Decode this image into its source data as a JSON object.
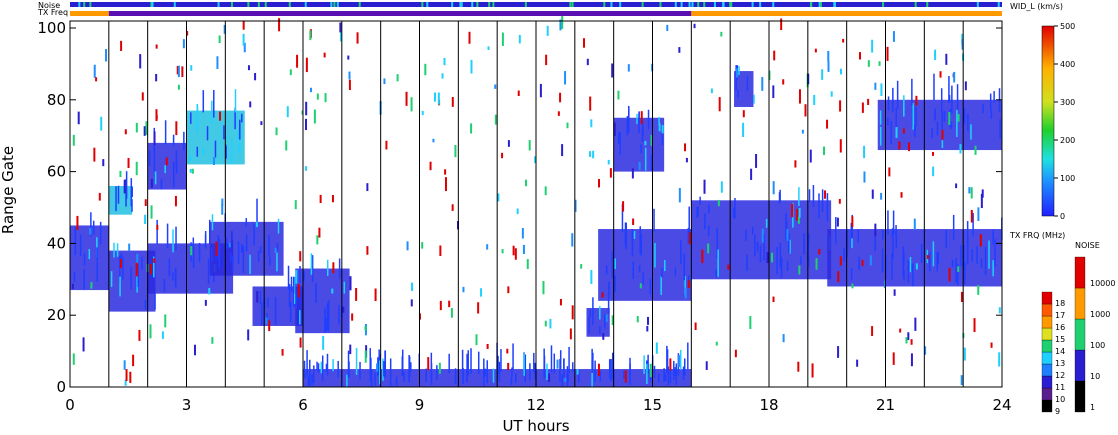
{
  "chart_data": {
    "type": "heatmap",
    "xlabel": "UT hours",
    "ylabel": "Range Gate",
    "xlim": [
      0,
      24
    ],
    "ylim": [
      0,
      100
    ],
    "xticks": [
      0,
      3,
      6,
      9,
      12,
      15,
      18,
      21,
      24
    ],
    "yticks": [
      0,
      20,
      40,
      60,
      80,
      100
    ],
    "grid_hours": [
      1,
      2,
      3,
      4,
      5,
      6,
      7,
      8,
      9,
      10,
      11,
      12,
      13,
      14,
      15,
      16,
      17,
      18,
      19,
      20,
      21,
      22,
      23
    ],
    "status_bars": {
      "noise_label": "Noise",
      "txfreq_label": "TX Freq",
      "txfreq_segments": [
        {
          "start": 0,
          "end": 1,
          "color": "#ff9900"
        },
        {
          "start": 1,
          "end": 16,
          "color": "#5a0fb0"
        },
        {
          "start": 16,
          "end": 24,
          "color": "#ff9900"
        }
      ]
    },
    "colorbars": {
      "width": {
        "title": "WID_L (km/s)",
        "ticks": [
          0,
          100,
          200,
          300,
          400,
          500
        ],
        "range": [
          0,
          500
        ]
      },
      "txfreq": {
        "title": "TX FRQ (MHz)",
        "ticks": [
          9,
          10,
          11,
          12,
          13,
          14,
          15,
          16,
          17,
          18
        ],
        "colors": [
          "#000000",
          "#5a1f8c",
          "#2a1fd0",
          "#1f7fff",
          "#1fd0ff",
          "#1fd070",
          "#dfe01f",
          "#ff9900",
          "#ff5a00",
          "#e00000"
        ]
      },
      "noise": {
        "title": "NOISE",
        "ticks": [
          "1",
          "10",
          "100",
          "1000",
          "10000"
        ],
        "colors": [
          "#000000",
          "#2a1fd0",
          "#1fd070",
          "#ff9900",
          "#e00000"
        ]
      }
    },
    "echo_regions": [
      {
        "x0": 0.0,
        "x1": 1.0,
        "y0": 27,
        "y1": 45,
        "color": "#2a2ae0"
      },
      {
        "x0": 1.0,
        "x1": 2.2,
        "y0": 21,
        "y1": 38,
        "color": "#2a2ae0"
      },
      {
        "x0": 2.0,
        "x1": 4.2,
        "y0": 26,
        "y1": 40,
        "color": "#2a2ae0"
      },
      {
        "x0": 3.6,
        "x1": 5.5,
        "y0": 31,
        "y1": 46,
        "color": "#2a2ae0"
      },
      {
        "x0": 4.7,
        "x1": 6.0,
        "y0": 17,
        "y1": 28,
        "color": "#2a2ae0"
      },
      {
        "x0": 5.8,
        "x1": 7.2,
        "y0": 15,
        "y1": 33,
        "color": "#2a2ae0"
      },
      {
        "x0": 6.0,
        "x1": 16.0,
        "y0": 0,
        "y1": 5,
        "color": "#2a2ae0"
      },
      {
        "x0": 13.6,
        "x1": 16.0,
        "y0": 24,
        "y1": 44,
        "color": "#2a2ae0"
      },
      {
        "x0": 13.3,
        "x1": 13.9,
        "y0": 14,
        "y1": 22,
        "color": "#2a2ae0"
      },
      {
        "x0": 16.0,
        "x1": 19.6,
        "y0": 30,
        "y1": 52,
        "color": "#2a2ae0"
      },
      {
        "x0": 19.5,
        "x1": 24.0,
        "y0": 28,
        "y1": 44,
        "color": "#2a2ae0"
      },
      {
        "x0": 3.0,
        "x1": 4.5,
        "y0": 62,
        "y1": 77,
        "color": "#20c0e0"
      },
      {
        "x0": 2.0,
        "x1": 3.0,
        "y0": 55,
        "y1": 68,
        "color": "#2a2ae0"
      },
      {
        "x0": 1.0,
        "x1": 1.6,
        "y0": 48,
        "y1": 56,
        "color": "#20c0e0"
      },
      {
        "x0": 14.0,
        "x1": 15.3,
        "y0": 60,
        "y1": 75,
        "color": "#2a2ae0"
      },
      {
        "x0": 20.8,
        "x1": 24.0,
        "y0": 66,
        "y1": 80,
        "color": "#2a2ae0"
      },
      {
        "x0": 17.1,
        "x1": 17.6,
        "y0": 78,
        "y1": 88,
        "color": "#2a2ae0"
      }
    ]
  }
}
